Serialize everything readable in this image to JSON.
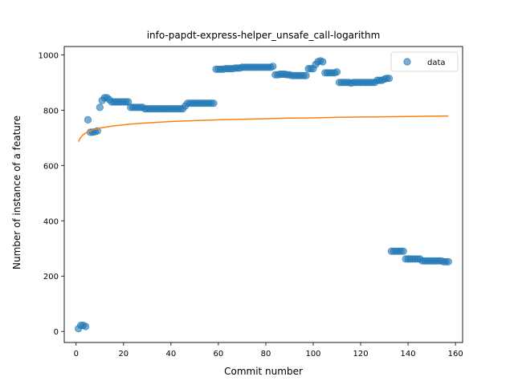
{
  "chart_data": {
    "type": "scatter",
    "title": "info-papdt-express-helper_unsafe_call-logarithm",
    "xlabel": "Commit number",
    "ylabel": "Number of instance of a feature",
    "xlim": [
      -5,
      163
    ],
    "ylim": [
      -40,
      1030
    ],
    "x_ticks": [
      0,
      20,
      40,
      60,
      80,
      100,
      120,
      140,
      160
    ],
    "y_ticks": [
      0,
      200,
      400,
      600,
      800,
      1000
    ],
    "x_tick_labels": [
      "0",
      "20",
      "40",
      "60",
      "80",
      "100",
      "120",
      "140",
      "160"
    ],
    "y_tick_labels": [
      "0",
      "200",
      "400",
      "600",
      "800",
      "1000"
    ],
    "grid": false,
    "legend": {
      "position": "top-right",
      "entries": [
        "data"
      ]
    },
    "colors": {
      "data": "#1f77b4",
      "fit": "#ff7f0e"
    },
    "series": [
      {
        "name": "data",
        "kind": "scatter",
        "points": [
          [
            1,
            10
          ],
          [
            2,
            22
          ],
          [
            3,
            22
          ],
          [
            4,
            18
          ],
          [
            5,
            765
          ],
          [
            6,
            720
          ],
          [
            7,
            720
          ],
          [
            8,
            722
          ],
          [
            9,
            725
          ],
          [
            10,
            810
          ],
          [
            11,
            835
          ],
          [
            12,
            845
          ],
          [
            13,
            845
          ],
          [
            14,
            838
          ],
          [
            15,
            830
          ],
          [
            16,
            830
          ],
          [
            17,
            830
          ],
          [
            18,
            830
          ],
          [
            19,
            830
          ],
          [
            20,
            830
          ],
          [
            21,
            830
          ],
          [
            22,
            830
          ],
          [
            23,
            810
          ],
          [
            24,
            810
          ],
          [
            25,
            810
          ],
          [
            26,
            810
          ],
          [
            27,
            810
          ],
          [
            28,
            810
          ],
          [
            29,
            805
          ],
          [
            30,
            805
          ],
          [
            31,
            805
          ],
          [
            32,
            805
          ],
          [
            33,
            805
          ],
          [
            34,
            805
          ],
          [
            35,
            805
          ],
          [
            36,
            805
          ],
          [
            37,
            805
          ],
          [
            38,
            805
          ],
          [
            39,
            805
          ],
          [
            40,
            805
          ],
          [
            41,
            805
          ],
          [
            42,
            805
          ],
          [
            43,
            805
          ],
          [
            44,
            805
          ],
          [
            45,
            805
          ],
          [
            46,
            815
          ],
          [
            47,
            825
          ],
          [
            48,
            825
          ],
          [
            49,
            825
          ],
          [
            50,
            825
          ],
          [
            51,
            825
          ],
          [
            52,
            825
          ],
          [
            53,
            825
          ],
          [
            54,
            825
          ],
          [
            55,
            825
          ],
          [
            56,
            825
          ],
          [
            57,
            825
          ],
          [
            58,
            825
          ],
          [
            59,
            948
          ],
          [
            60,
            948
          ],
          [
            61,
            948
          ],
          [
            62,
            948
          ],
          [
            63,
            950
          ],
          [
            64,
            950
          ],
          [
            65,
            950
          ],
          [
            66,
            950
          ],
          [
            67,
            952
          ],
          [
            68,
            952
          ],
          [
            69,
            952
          ],
          [
            70,
            955
          ],
          [
            71,
            955
          ],
          [
            72,
            955
          ],
          [
            73,
            955
          ],
          [
            74,
            955
          ],
          [
            75,
            955
          ],
          [
            76,
            955
          ],
          [
            77,
            955
          ],
          [
            78,
            955
          ],
          [
            79,
            955
          ],
          [
            80,
            955
          ],
          [
            81,
            955
          ],
          [
            82,
            955
          ],
          [
            83,
            958
          ],
          [
            84,
            928
          ],
          [
            85,
            928
          ],
          [
            86,
            930
          ],
          [
            87,
            930
          ],
          [
            88,
            930
          ],
          [
            89,
            928
          ],
          [
            90,
            928
          ],
          [
            91,
            925
          ],
          [
            92,
            925
          ],
          [
            93,
            925
          ],
          [
            94,
            925
          ],
          [
            95,
            925
          ],
          [
            96,
            925
          ],
          [
            97,
            925
          ],
          [
            98,
            950
          ],
          [
            99,
            950
          ],
          [
            100,
            950
          ],
          [
            101,
            965
          ],
          [
            102,
            975
          ],
          [
            103,
            978
          ],
          [
            104,
            975
          ],
          [
            105,
            935
          ],
          [
            106,
            935
          ],
          [
            107,
            935
          ],
          [
            108,
            935
          ],
          [
            109,
            935
          ],
          [
            110,
            938
          ],
          [
            111,
            900
          ],
          [
            112,
            900
          ],
          [
            113,
            900
          ],
          [
            114,
            900
          ],
          [
            115,
            900
          ],
          [
            116,
            898
          ],
          [
            117,
            900
          ],
          [
            118,
            900
          ],
          [
            119,
            900
          ],
          [
            120,
            900
          ],
          [
            121,
            900
          ],
          [
            122,
            900
          ],
          [
            123,
            900
          ],
          [
            124,
            900
          ],
          [
            125,
            900
          ],
          [
            126,
            900
          ],
          [
            127,
            908
          ],
          [
            128,
            908
          ],
          [
            129,
            908
          ],
          [
            130,
            912
          ],
          [
            131,
            915
          ],
          [
            132,
            915
          ],
          [
            133,
            290
          ],
          [
            134,
            290
          ],
          [
            135,
            290
          ],
          [
            136,
            290
          ],
          [
            137,
            290
          ],
          [
            138,
            290
          ],
          [
            139,
            262
          ],
          [
            140,
            262
          ],
          [
            141,
            262
          ],
          [
            142,
            262
          ],
          [
            143,
            262
          ],
          [
            144,
            262
          ],
          [
            145,
            262
          ],
          [
            146,
            255
          ],
          [
            147,
            255
          ],
          [
            148,
            255
          ],
          [
            149,
            255
          ],
          [
            150,
            255
          ],
          [
            151,
            255
          ],
          [
            152,
            255
          ],
          [
            153,
            255
          ],
          [
            154,
            255
          ],
          [
            155,
            252
          ],
          [
            156,
            252
          ],
          [
            157,
            252
          ]
        ]
      },
      {
        "name": "",
        "kind": "line",
        "points": [
          [
            1,
            686
          ],
          [
            2,
            702
          ],
          [
            3,
            711
          ],
          [
            4,
            717
          ],
          [
            5,
            722
          ],
          [
            6,
            725
          ],
          [
            8,
            731
          ],
          [
            10,
            735
          ],
          [
            12,
            738
          ],
          [
            15,
            742
          ],
          [
            20,
            747
          ],
          [
            25,
            751
          ],
          [
            30,
            754
          ],
          [
            40,
            759
          ],
          [
            50,
            762
          ],
          [
            60,
            765
          ],
          [
            70,
            767
          ],
          [
            80,
            769
          ],
          [
            90,
            771
          ],
          [
            100,
            772
          ],
          [
            110,
            774
          ],
          [
            120,
            775
          ],
          [
            130,
            776
          ],
          [
            140,
            777
          ],
          [
            150,
            778
          ],
          [
            157,
            779
          ]
        ]
      }
    ]
  }
}
